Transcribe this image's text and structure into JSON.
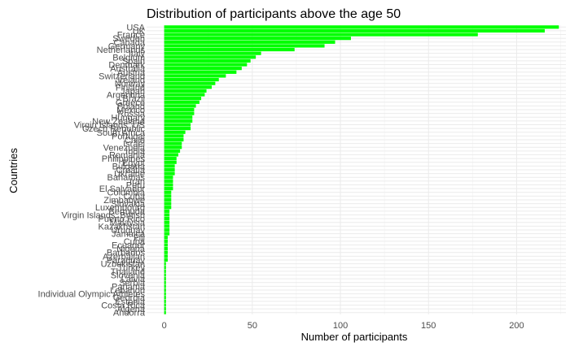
{
  "chart_data": {
    "type": "bar",
    "orientation": "horizontal",
    "title": "Distribution of participants above the age 50",
    "xlabel": "Number of participants",
    "ylabel": "Countries",
    "xlim": [
      -10,
      228
    ],
    "xticks": [
      0,
      50,
      100,
      150,
      200
    ],
    "bar_color": "#00ff00",
    "grid": true,
    "categories": [
      "USA",
      "UK",
      "France",
      "Sweden",
      "Canada",
      "Germany",
      "Netherlands",
      "Italy",
      "Belgium",
      "Spain",
      "Denmark",
      "Australia",
      "Austria",
      "Switzerland",
      "Ireland",
      "Norway",
      "Finland",
      "Japan",
      "Argentina",
      "Brazil",
      "Greece",
      "Poland",
      "Mexico",
      "Russia",
      "Hungary",
      "New Zealand",
      "Virgin Islands, US",
      "Czech Republic",
      "South Africa",
      "Portugal",
      "Chile",
      "Israel",
      "Venezuela",
      "India",
      "Romania",
      "Philippines",
      "Egypt",
      "Bulgaria",
      "Croatia",
      "Ukraine",
      "Bahamas",
      "Iran",
      "Peru",
      "El Salvador",
      "Colombia",
      "Cuba",
      "Zimbabwe",
      "Slovakia",
      "Luxembourg",
      "Bermuda",
      "Virgin Islands, British",
      "Puerto Rico",
      "Malaysia",
      "Kazakhstan",
      "Uruguay",
      "Jamaica",
      "Fiji",
      "Cuba",
      "Ecuador",
      "Nigeria",
      "Barbados",
      "Azerbaijan",
      "Paraguay",
      "Uzbekistan",
      "Turkey",
      "Thailand",
      "Slovenia",
      "Latvia",
      "Serbia",
      "Panama",
      "Lebanon",
      "Individual Olympic Athletes",
      "Georgia",
      "Estonia",
      "Costa Rica",
      "Algeria",
      "Andorra"
    ],
    "values": [
      224,
      216,
      178,
      106,
      97,
      91,
      74,
      55,
      52,
      49,
      47,
      44,
      41,
      35,
      31,
      29,
      27,
      24,
      23,
      21,
      20,
      18,
      17,
      17,
      16,
      16,
      15,
      15,
      12,
      11,
      11,
      10,
      10,
      9,
      8,
      7,
      7,
      6,
      6,
      6,
      5,
      5,
      5,
      5,
      4,
      4,
      4,
      4,
      4,
      3,
      3,
      3,
      3,
      3,
      3,
      3,
      2,
      2,
      2,
      2,
      2,
      2,
      2,
      1,
      1,
      1,
      1,
      1,
      1,
      1,
      1,
      1,
      1,
      1,
      1,
      1,
      1
    ]
  }
}
